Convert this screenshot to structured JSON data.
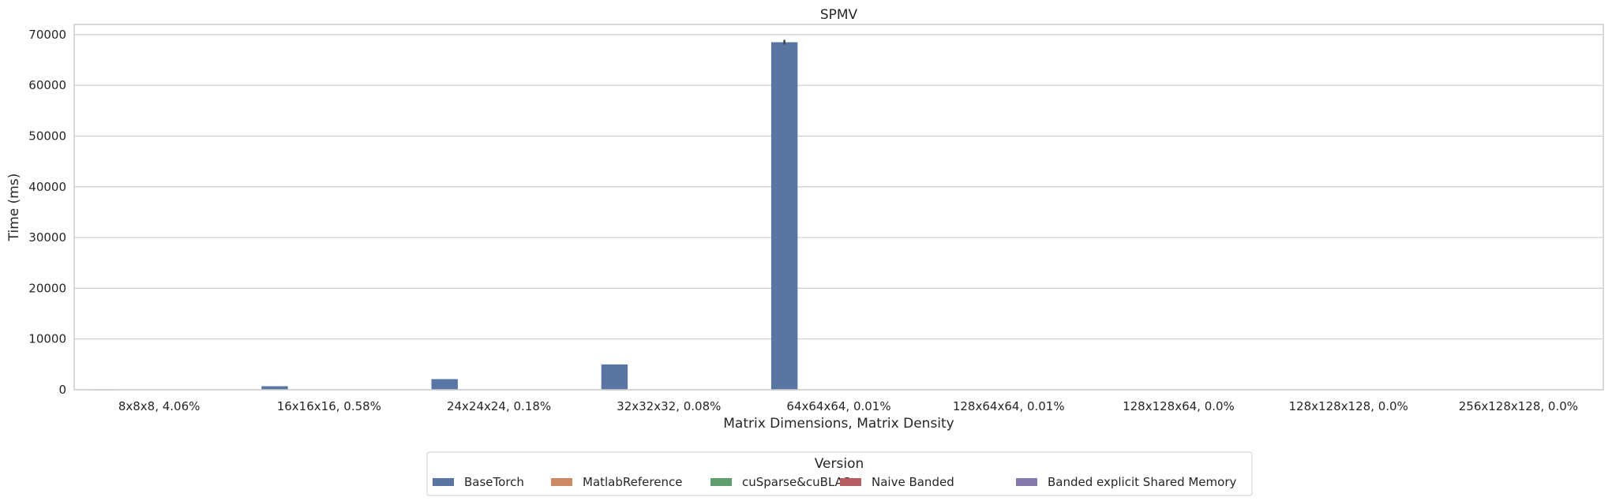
{
  "chart_data": {
    "type": "bar",
    "title": "SPMV",
    "xlabel": "Matrix Dimensions, Matrix Density",
    "ylabel": "Time (ms)",
    "ylim": [
      0,
      72000
    ],
    "yticks": [
      0,
      10000,
      20000,
      30000,
      40000,
      50000,
      60000,
      70000
    ],
    "grid": "horizontal",
    "categories": [
      "8x8x8, 4.06%",
      "16x16x16, 0.58%",
      "24x24x24, 0.18%",
      "32x32x32, 0.08%",
      "64x64x64, 0.01%",
      "128x64x64, 0.01%",
      "128x128x64, 0.0%",
      "128x128x128, 0.0%",
      "256x128x128, 0.0%"
    ],
    "series": [
      {
        "name": "BaseTorch",
        "color": "#5875a4",
        "values": [
          100,
          700,
          2100,
          5000,
          68500,
          null,
          null,
          null,
          null
        ]
      },
      {
        "name": "MatlabReference",
        "color": "#cc8963",
        "values": [
          0,
          0,
          0,
          0,
          0,
          0,
          0,
          0,
          0
        ]
      },
      {
        "name": "cuSparse&cuBLAS",
        "color": "#5f9e6e",
        "values": [
          0,
          0,
          0,
          0,
          0,
          0,
          0,
          0,
          0
        ]
      },
      {
        "name": "Naive Banded",
        "color": "#b55d60",
        "values": [
          0,
          0,
          0,
          0,
          0,
          0,
          0,
          0,
          0
        ]
      },
      {
        "name": "Banded explicit Shared Memory",
        "color": "#857aab",
        "values": [
          0,
          0,
          0,
          0,
          0,
          0,
          0,
          0,
          0
        ]
      }
    ],
    "legend": {
      "title": "Version",
      "placement": "bottom-center"
    }
  }
}
